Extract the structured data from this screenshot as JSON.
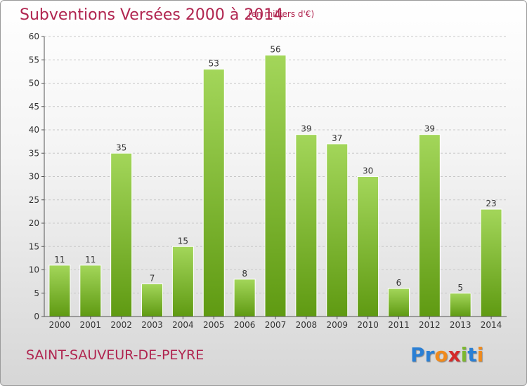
{
  "title": "Subventions Versées 2000 à 2014",
  "subtitle": "(en milliers d'€)",
  "commune": "SAINT-SAUVEUR-DE-PEYRE",
  "logo": {
    "text": "Proxiti",
    "letters": [
      {
        "char": "P",
        "color": "#2a7fd4"
      },
      {
        "char": "r",
        "color": "#2a7fd4"
      },
      {
        "char": "o",
        "color": "#f08a1c"
      },
      {
        "char": "x",
        "color": "#d42a2a"
      },
      {
        "char": "i",
        "color": "#7cb82f"
      },
      {
        "char": "t",
        "color": "#2a7fd4"
      },
      {
        "char": "i",
        "color": "#f08a1c"
      }
    ]
  },
  "colors": {
    "bar_light": "#a3d65a",
    "bar_dark": "#5f9a12",
    "title": "#b0244f",
    "axis": "#333333"
  },
  "chart_data": {
    "type": "bar",
    "categories": [
      "2000",
      "2001",
      "2002",
      "2003",
      "2004",
      "2005",
      "2006",
      "2007",
      "2008",
      "2009",
      "2010",
      "2011",
      "2012",
      "2013",
      "2014"
    ],
    "values": [
      11,
      11,
      35,
      7,
      15,
      53,
      8,
      56,
      39,
      37,
      30,
      6,
      39,
      5,
      23
    ],
    "ylim": [
      0,
      60
    ],
    "yticks": [
      0,
      5,
      10,
      15,
      20,
      25,
      30,
      35,
      40,
      45,
      50,
      55,
      60
    ],
    "grid": true,
    "data_labels": true
  }
}
